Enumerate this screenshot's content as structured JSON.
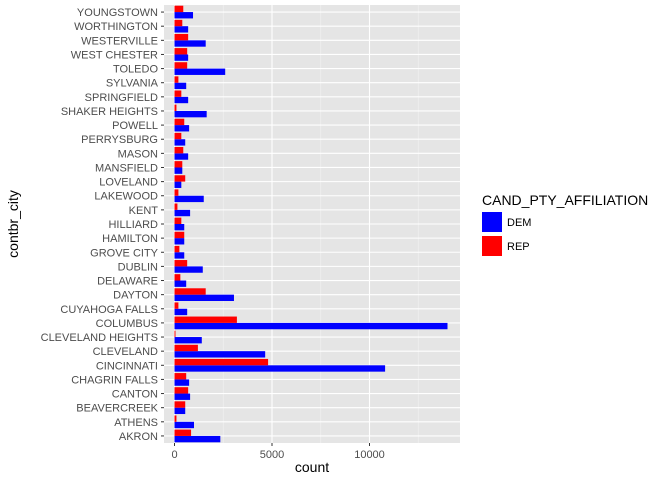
{
  "chart_data": {
    "type": "bar",
    "orientation": "horizontal",
    "position": "dodge",
    "xlabel": "contbr_city",
    "ylabel": "count",
    "xlim": [
      0,
      14300
    ],
    "y_ticks": [
      0,
      5000,
      10000
    ],
    "y_tick_labels": [
      "0",
      "5000",
      "10000"
    ],
    "categories": [
      "AKRON",
      "ATHENS",
      "BEAVERCREEK",
      "CANTON",
      "CHAGRIN FALLS",
      "CINCINNATI",
      "CLEVELAND",
      "CLEVELAND HEIGHTS",
      "COLUMBUS",
      "CUYAHOGA FALLS",
      "DAYTON",
      "DELAWARE",
      "DUBLIN",
      "GROVE CITY",
      "HAMILTON",
      "HILLIARD",
      "KENT",
      "LAKEWOOD",
      "LOVELAND",
      "MANSFIELD",
      "MASON",
      "PERRYSBURG",
      "POWELL",
      "SHAKER HEIGHTS",
      "SPRINGFIELD",
      "SYLVANIA",
      "TOLEDO",
      "WEST CHESTER",
      "WESTERVILLE",
      "WORTHINGTON",
      "YOUNGSTOWN"
    ],
    "series": [
      {
        "name": "DEM",
        "color": "#0000ff",
        "values": [
          2350,
          1000,
          550,
          800,
          750,
          10800,
          4650,
          1400,
          14000,
          650,
          3050,
          600,
          1450,
          500,
          500,
          500,
          800,
          1500,
          350,
          400,
          700,
          550,
          750,
          1650,
          700,
          600,
          2600,
          700,
          1600,
          700,
          950
        ]
      },
      {
        "name": "REP",
        "color": "#ff0000",
        "values": [
          850,
          100,
          550,
          700,
          600,
          4800,
          1200,
          50,
          3200,
          200,
          1600,
          300,
          650,
          250,
          500,
          350,
          150,
          200,
          550,
          400,
          450,
          350,
          500,
          100,
          350,
          200,
          650,
          650,
          700,
          400,
          450
        ]
      }
    ],
    "legend": {
      "title": "CAND_PTY_AFFILIATION",
      "position": "right",
      "entries": [
        "DEM",
        "REP"
      ]
    },
    "grid": true,
    "panel_background": "#e5e5e5"
  }
}
